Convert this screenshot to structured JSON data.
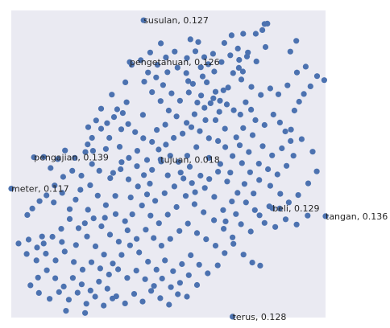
{
  "chart_data": {
    "type": "scatter",
    "title": "",
    "xlabel": "",
    "ylabel": "",
    "grid": false,
    "marker_color": "#4c72b0",
    "background_color": "#eaeaf2",
    "xlim": [
      0,
      100
    ],
    "ylim": [
      0,
      100
    ],
    "annotations": [
      {
        "text": "susulan, 0.127",
        "x": 42.1,
        "y": 96.8
      },
      {
        "text": "pengetahuan, 0.126",
        "x": 37.7,
        "y": 83.2
      },
      {
        "text": "pengajian, 0.139",
        "x": 7.2,
        "y": 52.2
      },
      {
        "text": "tujuan, 0.018",
        "x": 47.5,
        "y": 51.5
      },
      {
        "text": "meter, 0.117",
        "x": 0.0,
        "y": 42.0
      },
      {
        "text": "beli, 0.129",
        "x": 83.1,
        "y": 35.6
      },
      {
        "text": "tangan, 0.136",
        "x": 100.0,
        "y": 33.0
      },
      {
        "text": "terus, 0.128",
        "x": 70.4,
        "y": 0.3
      }
    ],
    "points": [
      [
        81.5,
        95.7
      ],
      [
        88.8,
        86.6
      ],
      [
        80.9,
        88.1
      ],
      [
        80.6,
        95.6
      ],
      [
        90.7,
        90.1
      ],
      [
        57.0,
        90.6
      ],
      [
        59.5,
        89.7
      ],
      [
        72.1,
        87.6
      ],
      [
        70.1,
        91.9
      ],
      [
        67.8,
        89.4
      ],
      [
        73.8,
        92.4
      ],
      [
        75.3,
        86.3
      ],
      [
        77.8,
        92.4
      ],
      [
        79.9,
        93.6
      ],
      [
        73.7,
        80.1
      ],
      [
        72.4,
        81.3
      ],
      [
        69.0,
        74.9
      ],
      [
        64.6,
        80.1
      ],
      [
        62.7,
        82.5
      ],
      [
        60.3,
        81.5
      ],
      [
        55.7,
        79.6
      ],
      [
        56.3,
        77.0
      ],
      [
        57.8,
        76.1
      ],
      [
        60.9,
        78.5
      ],
      [
        62.2,
        76.6
      ],
      [
        65.0,
        73.5
      ],
      [
        66.4,
        70.6
      ],
      [
        68.6,
        69.4
      ],
      [
        70.8,
        67.5
      ],
      [
        72.9,
        66.1
      ],
      [
        74.6,
        70.1
      ],
      [
        76.3,
        67.7
      ],
      [
        77.7,
        64.3
      ],
      [
        80.6,
        62.7
      ],
      [
        83.4,
        66.1
      ],
      [
        85.5,
        63.5
      ],
      [
        87.2,
        60.6
      ],
      [
        88.9,
        57.5
      ],
      [
        90.1,
        67.4
      ],
      [
        91.6,
        70.3
      ],
      [
        93.1,
        72.8
      ],
      [
        95.2,
        75.3
      ],
      [
        97.3,
        78.6
      ],
      [
        99.6,
        77.3
      ],
      [
        93.7,
        81.7
      ],
      [
        90.9,
        79.8
      ],
      [
        87.9,
        75.6
      ],
      [
        85.0,
        72.7
      ],
      [
        82.4,
        74.6
      ],
      [
        79.4,
        72.5
      ],
      [
        76.4,
        75.1
      ],
      [
        73.2,
        77.5
      ],
      [
        70.6,
        79.6
      ],
      [
        67.5,
        74.0
      ],
      [
        64.3,
        71.4
      ],
      [
        61.5,
        68.3
      ],
      [
        58.3,
        66.2
      ],
      [
        55.8,
        63.4
      ],
      [
        52.6,
        65.5
      ],
      [
        50.1,
        67.4
      ],
      [
        47.5,
        70.5
      ],
      [
        44.8,
        73.4
      ],
      [
        42.3,
        76.8
      ],
      [
        43.5,
        79.8
      ],
      [
        46.5,
        82.3
      ],
      [
        49.2,
        84.7
      ],
      [
        52.0,
        86.6
      ],
      [
        47.6,
        89.3
      ],
      [
        44.2,
        86.3
      ],
      [
        41.2,
        83.8
      ],
      [
        38.3,
        82.3
      ],
      [
        36.3,
        76.6
      ],
      [
        32.0,
        72.6
      ],
      [
        28.6,
        68.0
      ],
      [
        32.7,
        65.3
      ],
      [
        35.5,
        66.6
      ],
      [
        37.2,
        63.0
      ],
      [
        39.4,
        60.4
      ],
      [
        42.0,
        58.4
      ],
      [
        44.8,
        57.2
      ],
      [
        46.9,
        54.7
      ],
      [
        49.2,
        56.3
      ],
      [
        51.7,
        58.5
      ],
      [
        54.5,
        59.9
      ],
      [
        57.3,
        62.0
      ],
      [
        60.0,
        60.7
      ],
      [
        62.9,
        58.4
      ],
      [
        65.8,
        57.5
      ],
      [
        68.1,
        55.5
      ],
      [
        70.4,
        52.6
      ],
      [
        73.4,
        50.3
      ],
      [
        76.0,
        47.3
      ],
      [
        78.9,
        44.8
      ],
      [
        82.4,
        42.9
      ],
      [
        85.6,
        40.3
      ],
      [
        88.3,
        37.5
      ],
      [
        91.3,
        39.9
      ],
      [
        94.5,
        43.7
      ],
      [
        97.2,
        47.6
      ],
      [
        95.9,
        54.0
      ],
      [
        92.4,
        58.1
      ],
      [
        89.0,
        61.2
      ],
      [
        86.1,
        55.1
      ],
      [
        83.0,
        52.8
      ],
      [
        80.0,
        55.8
      ],
      [
        76.8,
        59.4
      ],
      [
        73.8,
        61.7
      ],
      [
        71.6,
        58.7
      ],
      [
        68.0,
        61.5
      ],
      [
        65.0,
        64.3
      ],
      [
        61.8,
        64.3
      ],
      [
        58.9,
        55.5
      ],
      [
        56.0,
        52.7
      ],
      [
        53.2,
        50.7
      ],
      [
        50.6,
        52.7
      ],
      [
        47.7,
        50.8
      ],
      [
        44.8,
        48.1
      ],
      [
        42.2,
        46.4
      ],
      [
        40.0,
        49.3
      ],
      [
        37.4,
        52.0
      ],
      [
        34.5,
        55.6
      ],
      [
        31.2,
        58.5
      ],
      [
        28.6,
        61.5
      ],
      [
        25.7,
        58.5
      ],
      [
        24.3,
        56.4
      ],
      [
        23.6,
        53.9
      ],
      [
        25.7,
        50.0
      ],
      [
        28.0,
        47.8
      ],
      [
        31.5,
        45.4
      ],
      [
        34.8,
        48.3
      ],
      [
        37.3,
        45.0
      ],
      [
        40.3,
        42.7
      ],
      [
        43.2,
        40.1
      ],
      [
        45.8,
        38.0
      ],
      [
        48.8,
        40.5
      ],
      [
        51.9,
        42.7
      ],
      [
        54.8,
        45.3
      ],
      [
        57.5,
        43.8
      ],
      [
        60.2,
        46.2
      ],
      [
        63.0,
        45.1
      ],
      [
        65.8,
        47.5
      ],
      [
        68.7,
        44.3
      ],
      [
        72.0,
        40.6
      ],
      [
        74.7,
        37.5
      ],
      [
        77.5,
        35.0
      ],
      [
        80.6,
        30.8
      ],
      [
        84.0,
        29.5
      ],
      [
        87.3,
        32.0
      ],
      [
        90.8,
        30.3
      ],
      [
        94.3,
        33.2
      ],
      [
        85.4,
        35.5
      ],
      [
        82.1,
        36.2
      ],
      [
        79.0,
        33.3
      ],
      [
        76.2,
        28.0
      ],
      [
        73.1,
        30.4
      ],
      [
        70.4,
        26.1
      ],
      [
        67.6,
        28.9
      ],
      [
        64.5,
        31.7
      ],
      [
        61.2,
        34.3
      ],
      [
        58.3,
        36.9
      ],
      [
        55.5,
        39.6
      ],
      [
        52.6,
        36.0
      ],
      [
        49.8,
        33.5
      ],
      [
        47.0,
        30.7
      ],
      [
        44.3,
        33.2
      ],
      [
        41.6,
        36.5
      ],
      [
        38.5,
        33.6
      ],
      [
        36.2,
        31.4
      ],
      [
        33.2,
        33.7
      ],
      [
        30.1,
        36.6
      ],
      [
        27.5,
        39.7
      ],
      [
        25.1,
        43.1
      ],
      [
        22.3,
        46.2
      ],
      [
        19.4,
        47.8
      ],
      [
        16.5,
        45.8
      ],
      [
        13.8,
        43.0
      ],
      [
        11.2,
        39.8
      ],
      [
        9.0,
        37.9
      ],
      [
        6.7,
        35.5
      ],
      [
        5.1,
        33.4
      ],
      [
        13.5,
        37.5
      ],
      [
        16.2,
        40.6
      ],
      [
        18.6,
        35.3
      ],
      [
        20.5,
        38.4
      ],
      [
        22.0,
        41.6
      ],
      [
        24.4,
        35.1
      ],
      [
        26.2,
        32.3
      ],
      [
        28.7,
        29.7
      ],
      [
        31.4,
        27.0
      ],
      [
        34.2,
        24.7
      ],
      [
        37.0,
        28.4
      ],
      [
        39.9,
        25.6
      ],
      [
        42.8,
        28.6
      ],
      [
        45.3,
        25.9
      ],
      [
        47.8,
        23.4
      ],
      [
        50.6,
        25.6
      ],
      [
        53.5,
        28.2
      ],
      [
        56.2,
        30.6
      ],
      [
        59.1,
        27.5
      ],
      [
        62.0,
        25.5
      ],
      [
        65.0,
        23.4
      ],
      [
        67.9,
        21.0
      ],
      [
        70.7,
        24.0
      ],
      [
        73.9,
        20.5
      ],
      [
        76.7,
        17.9
      ],
      [
        79.2,
        16.9
      ],
      [
        65.7,
        17.0
      ],
      [
        62.5,
        14.4
      ],
      [
        59.8,
        17.2
      ],
      [
        57.1,
        20.3
      ],
      [
        54.3,
        17.4
      ],
      [
        51.5,
        15.1
      ],
      [
        48.9,
        18.6
      ],
      [
        46.2,
        15.6
      ],
      [
        43.5,
        18.2
      ],
      [
        40.7,
        21.2
      ],
      [
        37.8,
        23.5
      ],
      [
        35.1,
        20.4
      ],
      [
        32.3,
        17.6
      ],
      [
        29.5,
        20.5
      ],
      [
        26.8,
        23.2
      ],
      [
        24.1,
        26.4
      ],
      [
        21.4,
        29.1
      ],
      [
        18.6,
        32.1
      ],
      [
        15.9,
        28.9
      ],
      [
        13.1,
        26.3
      ],
      [
        10.3,
        24.1
      ],
      [
        8.2,
        22.8
      ],
      [
        5.5,
        25.4
      ],
      [
        2.3,
        24.1
      ],
      [
        4.9,
        20.7
      ],
      [
        8.0,
        18.6
      ],
      [
        11.0,
        20.8
      ],
      [
        14.1,
        18.6
      ],
      [
        17.0,
        21.5
      ],
      [
        19.9,
        18.1
      ],
      [
        22.7,
        15.6
      ],
      [
        25.5,
        18.0
      ],
      [
        28.3,
        16.0
      ],
      [
        31.1,
        14.0
      ],
      [
        34.0,
        15.7
      ],
      [
        36.9,
        12.9
      ],
      [
        39.8,
        15.3
      ],
      [
        42.6,
        12.5
      ],
      [
        45.4,
        10.3
      ],
      [
        48.0,
        12.7
      ],
      [
        50.8,
        9.9
      ],
      [
        53.7,
        11.3
      ],
      [
        56.5,
        13.8
      ],
      [
        59.1,
        10.6
      ],
      [
        55.9,
        6.8
      ],
      [
        53.0,
        7.6
      ],
      [
        50.2,
        4.2
      ],
      [
        47.4,
        6.3
      ],
      [
        44.5,
        8.7
      ],
      [
        41.8,
        5.2
      ],
      [
        39.1,
        7.7
      ],
      [
        36.2,
        4.6
      ],
      [
        33.4,
        6.9
      ],
      [
        30.6,
        9.4
      ],
      [
        27.9,
        11.7
      ],
      [
        25.2,
        8.8
      ],
      [
        22.4,
        10.8
      ],
      [
        19.6,
        12.9
      ],
      [
        16.7,
        10.1
      ],
      [
        14.0,
        12.8
      ],
      [
        11.3,
        15.4
      ],
      [
        8.5,
        13.0
      ],
      [
        6.1,
        10.5
      ],
      [
        8.8,
        8.0
      ],
      [
        12.2,
        6.1
      ],
      [
        15.2,
        8.3
      ],
      [
        18.3,
        5.8
      ],
      [
        21.1,
        8.1
      ],
      [
        23.9,
        4.5
      ],
      [
        26.7,
        6.8
      ],
      [
        29.4,
        3.9
      ],
      [
        32.2,
        6.2
      ],
      [
        23.5,
        1.5
      ],
      [
        17.4,
        2.2
      ],
      [
        9.8,
        26.4
      ],
      [
        16.1,
        24.6
      ],
      [
        20.6,
        23.6
      ],
      [
        23.4,
        30.7
      ],
      [
        29.8,
        32.5
      ],
      [
        33.1,
        39.6
      ],
      [
        38.0,
        39.1
      ],
      [
        44.1,
        43.6
      ],
      [
        49.8,
        46.3
      ],
      [
        53.9,
        47.2
      ],
      [
        56.8,
        49.1
      ],
      [
        58.5,
        40.8
      ],
      [
        61.6,
        42.2
      ],
      [
        64.6,
        39.3
      ],
      [
        67.4,
        35.0
      ],
      [
        70.2,
        37.8
      ],
      [
        62.9,
        52.0
      ],
      [
        66.5,
        50.0
      ],
      [
        69.7,
        47.2
      ],
      [
        72.7,
        56.1
      ],
      [
        75.6,
        53.9
      ],
      [
        78.8,
        50.1
      ],
      [
        81.7,
        48.3
      ],
      [
        84.7,
        46.6
      ],
      [
        87.6,
        49.4
      ],
      [
        89.8,
        52.7
      ],
      [
        74.2,
        43.5
      ],
      [
        77.1,
        40.4
      ],
      [
        71.5,
        33.7
      ],
      [
        68.2,
        31.3
      ],
      [
        60.4,
        72.3
      ],
      [
        63.4,
        69.8
      ],
      [
        66.2,
        67.0
      ],
      [
        59.2,
        70.0
      ],
      [
        56.5,
        73.3
      ],
      [
        53.7,
        70.6
      ],
      [
        51.0,
        73.0
      ],
      [
        48.3,
        75.7
      ],
      [
        46.1,
        78.2
      ],
      [
        49.7,
        79.9
      ],
      [
        52.9,
        81.4
      ],
      [
        55.9,
        84.5
      ],
      [
        58.6,
        86.7
      ],
      [
        61.4,
        84.8
      ],
      [
        64.2,
        85.9
      ],
      [
        66.9,
        83.2
      ],
      [
        69.7,
        85.4
      ],
      [
        72.5,
        83.9
      ],
      [
        75.0,
        85.0
      ],
      [
        78.0,
        83.4
      ],
      [
        35.0,
        61.3
      ],
      [
        30.5,
        63.3
      ],
      [
        27.0,
        64.2
      ],
      [
        24.5,
        62.0
      ],
      [
        40.1,
        54.3
      ],
      [
        43.2,
        51.3
      ],
      [
        46.3,
        61.1
      ],
      [
        49.0,
        62.8
      ],
      [
        41.9,
        66.0
      ],
      [
        36.7,
        70.1
      ],
      [
        33.7,
        67.8
      ],
      [
        30.1,
        54.9
      ],
      [
        26.0,
        54.3
      ],
      [
        20.2,
        52.0
      ],
      [
        17.1,
        54.4
      ],
      [
        12.5,
        48.7
      ],
      [
        10.3,
        52.3
      ],
      [
        14.8,
        51.6
      ],
      [
        35.1,
        50.6
      ],
      [
        32.4,
        47.1
      ]
    ]
  }
}
